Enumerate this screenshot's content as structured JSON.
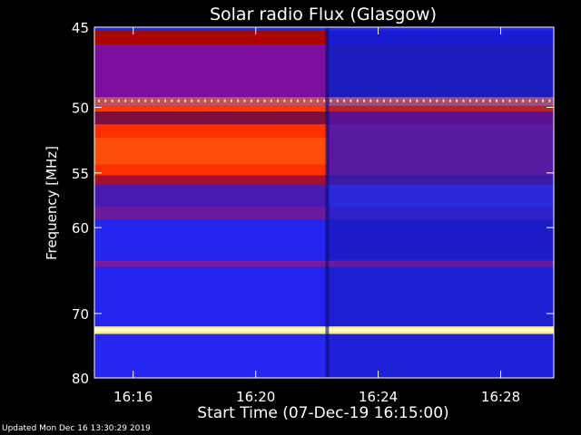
{
  "chart_data": {
    "type": "heatmap",
    "title": "Solar radio Flux (Glasgow)",
    "ylabel": "Frequency [MHz]",
    "xlabel": "Start Time (07-Dec-19 16:15:00)",
    "y_ticks": [
      "45",
      "50",
      "55",
      "60",
      "70",
      "80"
    ],
    "y_tick_values": [
      45,
      50,
      55,
      60,
      70,
      80
    ],
    "x_ticks": [
      "16:16",
      "16:20",
      "16:24",
      "16:28"
    ],
    "x_tick_minutes": [
      16.267,
      20.267,
      24.267,
      28.267
    ],
    "ylim": [
      45,
      80
    ],
    "y_scale": "reciprocal",
    "xlim_minutes": [
      15.0,
      30.0
    ],
    "step_time_minutes": 22.6,
    "bands": [
      {
        "f0": 45.2,
        "f1": 46.0,
        "before": "#b00000",
        "after": "#1a1ad0"
      },
      {
        "f0": 46.0,
        "f1": 49.3,
        "before": "#7a0fa0",
        "after": "#1d1dbe"
      },
      {
        "f0": 49.3,
        "f1": 49.9,
        "before": "#c05060",
        "after": "#9a5080"
      },
      {
        "f0": 49.9,
        "f1": 50.3,
        "before": "#ff3a00",
        "after": "#c02020"
      },
      {
        "f0": 50.3,
        "f1": 51.2,
        "before": "#7a1040",
        "after": "#5a1090"
      },
      {
        "f0": 51.2,
        "f1": 55.2,
        "before": "#ff3000",
        "after": "#5a1aa0"
      },
      {
        "f0": 55.2,
        "f1": 56.0,
        "before": "#a01030",
        "after": "#3b1aa8"
      },
      {
        "f0": 56.0,
        "f1": 58.0,
        "before": "#4a1ab0",
        "after": "#2a2ad8"
      },
      {
        "f0": 58.0,
        "f1": 59.2,
        "before": "#6a1a9a",
        "after": "#3020c8"
      },
      {
        "f0": 59.2,
        "f1": 63.5,
        "before": "#2525ee",
        "after": "#1c1cc8"
      },
      {
        "f0": 63.5,
        "f1": 64.2,
        "before": "#7a1aa0",
        "after": "#6a1aa0"
      },
      {
        "f0": 64.2,
        "f1": 71.8,
        "before": "#2424ee",
        "after": "#1e1ed2"
      },
      {
        "f0": 71.8,
        "f1": 72.9,
        "before": "#ffee80",
        "after": "#ffee80"
      },
      {
        "f0": 72.9,
        "f1": 80.0,
        "before": "#2727f0",
        "after": "#2020d8"
      }
    ],
    "footer": "Updated Mon Dec 16 13:30:29 2019"
  }
}
